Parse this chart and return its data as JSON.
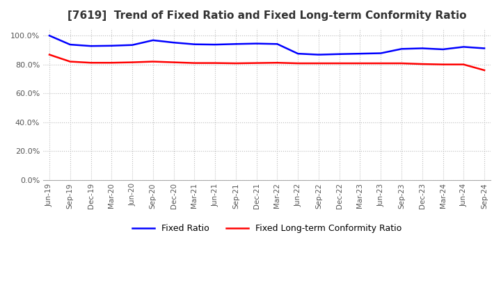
{
  "title": "[7619]  Trend of Fixed Ratio and Fixed Long-term Conformity Ratio",
  "x_labels": [
    "Jun-19",
    "Sep-19",
    "Dec-19",
    "Mar-20",
    "Jun-20",
    "Sep-20",
    "Dec-20",
    "Mar-21",
    "Jun-21",
    "Sep-21",
    "Dec-21",
    "Mar-22",
    "Jun-22",
    "Sep-22",
    "Dec-22",
    "Mar-23",
    "Jun-23",
    "Sep-23",
    "Dec-23",
    "Mar-24",
    "Jun-24",
    "Sep-24"
  ],
  "fixed_ratio": [
    1.0,
    0.938,
    0.928,
    0.93,
    0.935,
    0.968,
    0.952,
    0.94,
    0.938,
    0.942,
    0.945,
    0.942,
    0.875,
    0.868,
    0.872,
    0.875,
    0.878,
    0.908,
    0.912,
    0.905,
    0.922,
    0.912
  ],
  "fixed_lt_ratio": [
    0.868,
    0.82,
    0.812,
    0.812,
    0.815,
    0.82,
    0.815,
    0.81,
    0.81,
    0.808,
    0.81,
    0.812,
    0.808,
    0.808,
    0.808,
    0.808,
    0.808,
    0.808,
    0.803,
    0.8,
    0.8,
    0.76
  ],
  "fixed_ratio_color": "#0000ff",
  "fixed_lt_ratio_color": "#ff0000",
  "ylim": [
    0.0,
    1.05
  ],
  "yticks": [
    0.0,
    0.2,
    0.4,
    0.6,
    0.8,
    1.0
  ],
  "background_color": "#ffffff",
  "grid_color": "#bbbbbb",
  "title_color": "#333333",
  "tick_color": "#555555"
}
